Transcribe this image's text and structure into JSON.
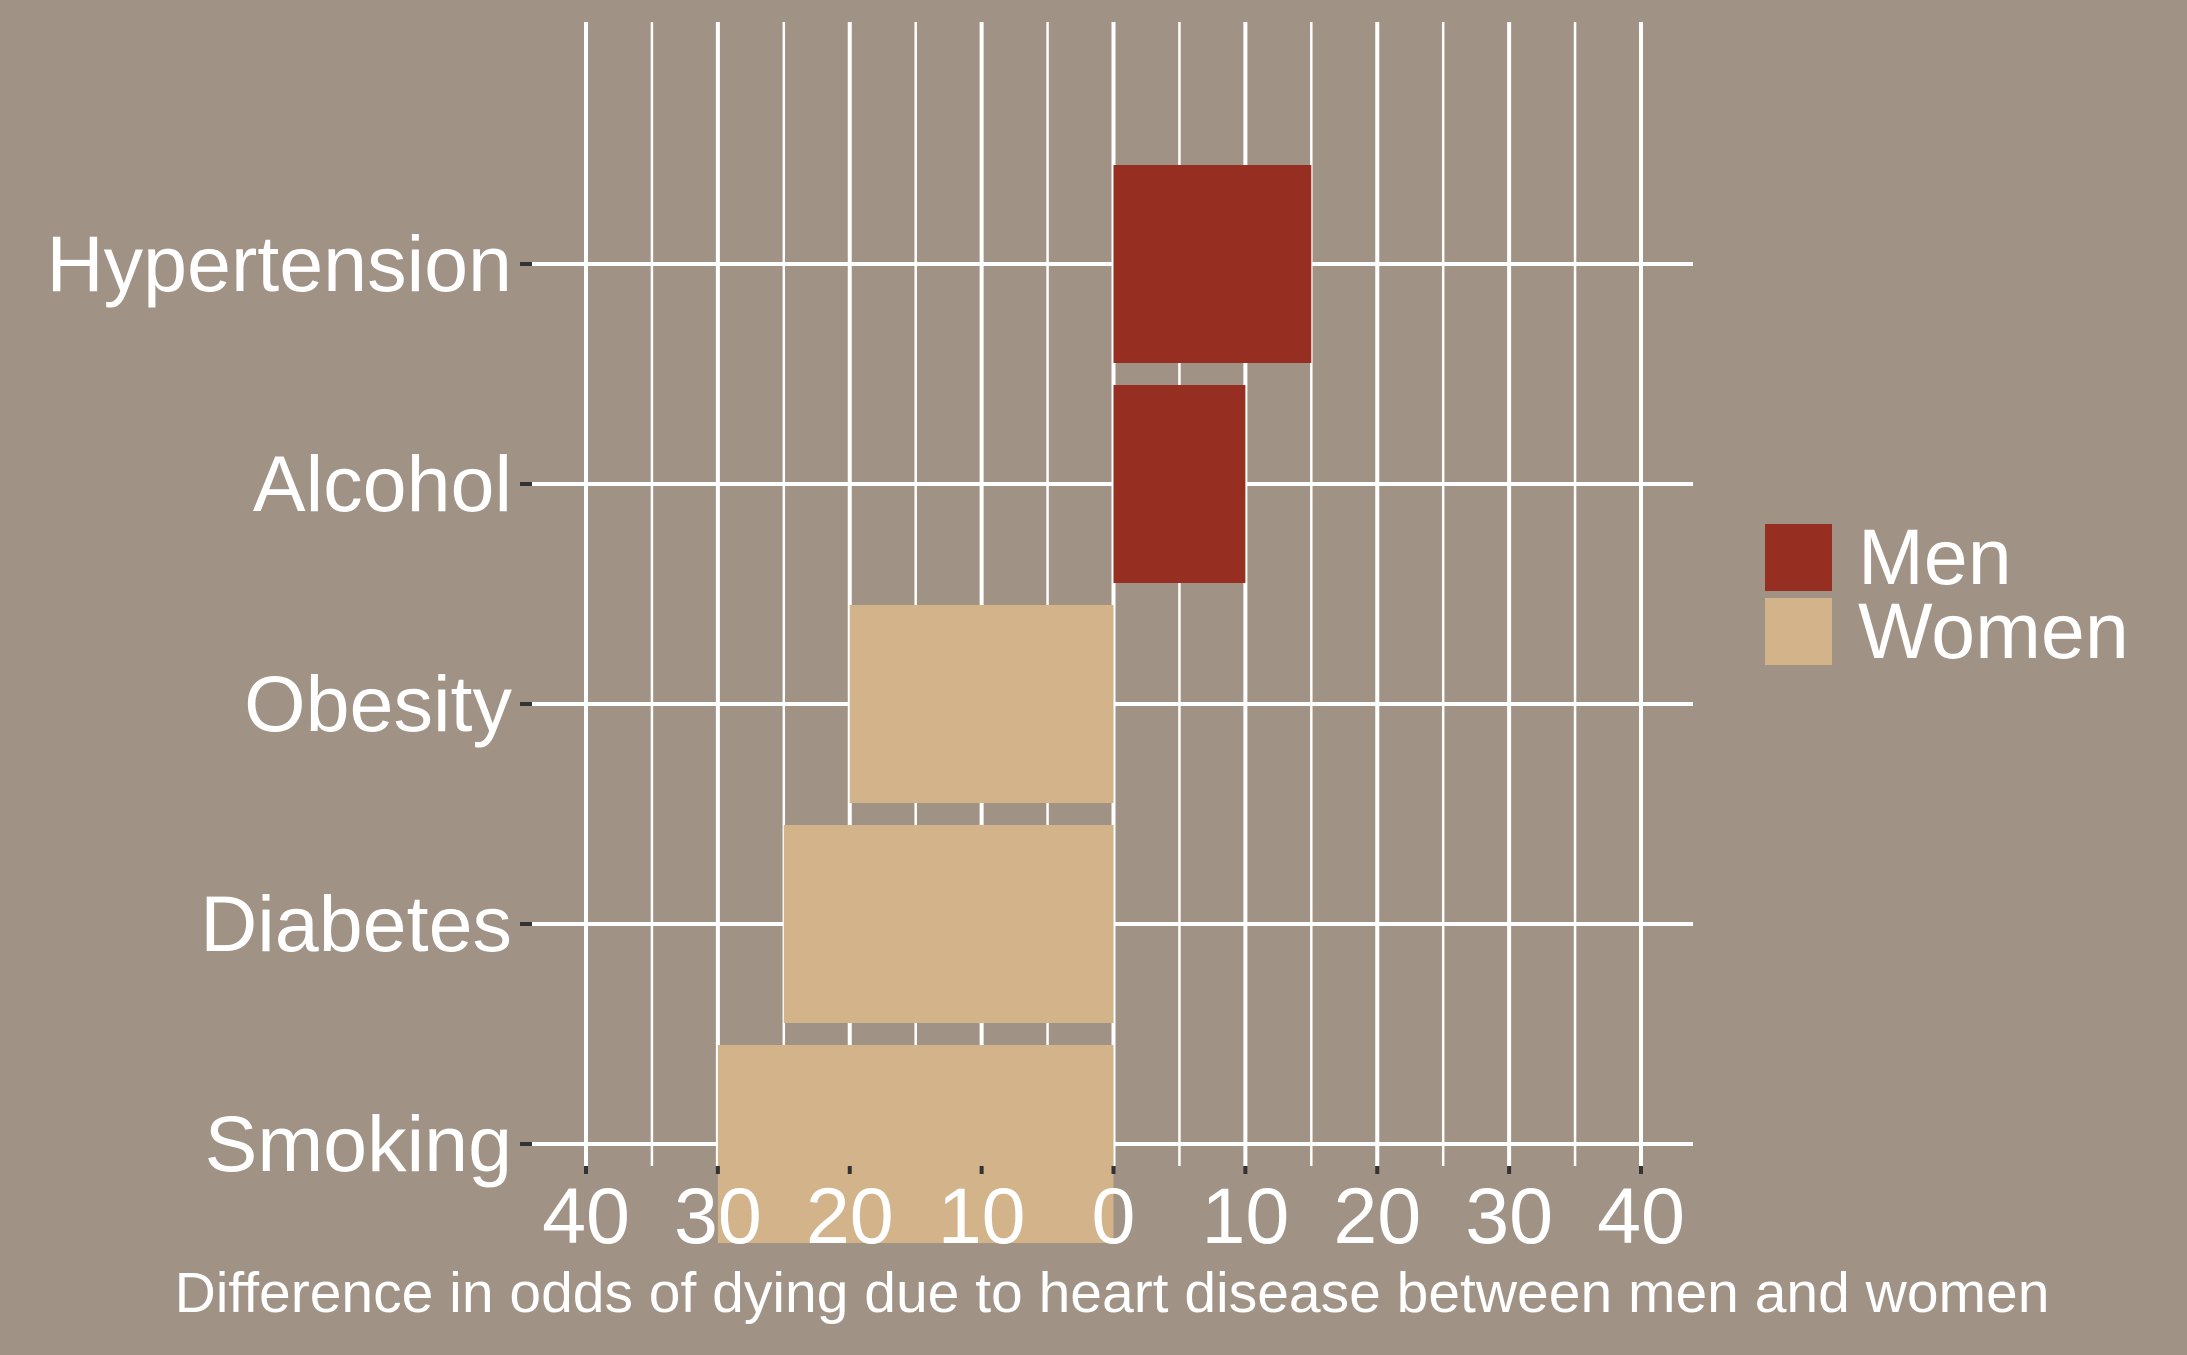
{
  "chart_data": {
    "type": "bar",
    "orientation": "horizontal",
    "categories": [
      "Hypertension",
      "Alcohol",
      "Obesity",
      "Diabetes",
      "Smoking"
    ],
    "values": [
      15,
      10,
      -20,
      -25,
      -30
    ],
    "series_by_sign": {
      "positive": {
        "name": "Men",
        "color": "#962f21"
      },
      "negative": {
        "name": "Women",
        "color": "#d3b38a"
      }
    },
    "xlim": [
      -40,
      40
    ],
    "xticks": [
      -40,
      -30,
      -20,
      -10,
      0,
      10,
      20,
      30,
      40
    ],
    "xtick_labels": [
      "40",
      "30",
      "20",
      "10",
      "0",
      "10",
      "20",
      "30",
      "40"
    ],
    "xlabel": "Difference in odds of dying due to heart disease between men and women",
    "ylabel": "",
    "title": "",
    "grid": true,
    "legend": {
      "placement": "right",
      "entries": [
        "Men",
        "Women"
      ]
    }
  },
  "colors": {
    "background": "#a09284",
    "grid": "#ffffff",
    "text": "#ffffff",
    "tick": "#333333"
  }
}
